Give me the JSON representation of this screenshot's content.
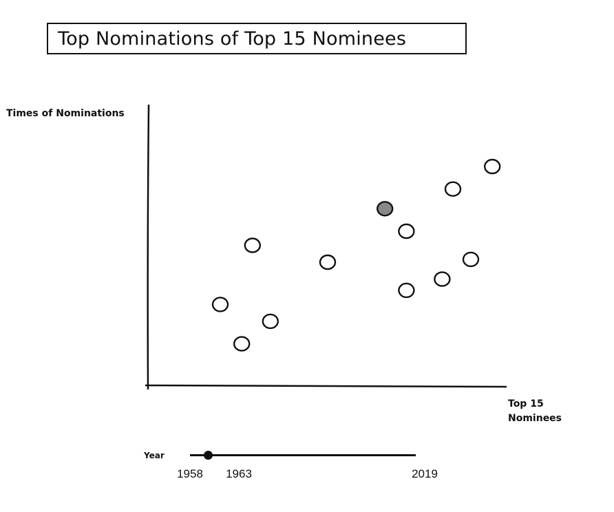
{
  "chart_data": {
    "type": "scatter",
    "title": "Top Nominations of Top 15 Nominees",
    "xlabel": "Top 15 Nominees",
    "ylabel": "Times of Nominations",
    "xlim": [
      0,
      1
    ],
    "ylim": [
      0,
      1
    ],
    "points": [
      {
        "x": 0.2,
        "y": 0.29,
        "highlighted": false
      },
      {
        "x": 0.26,
        "y": 0.15,
        "highlighted": false
      },
      {
        "x": 0.29,
        "y": 0.5,
        "highlighted": false
      },
      {
        "x": 0.34,
        "y": 0.23,
        "highlighted": false
      },
      {
        "x": 0.5,
        "y": 0.44,
        "highlighted": false
      },
      {
        "x": 0.66,
        "y": 0.63,
        "highlighted": true
      },
      {
        "x": 0.72,
        "y": 0.55,
        "highlighted": false
      },
      {
        "x": 0.72,
        "y": 0.34,
        "highlighted": false
      },
      {
        "x": 0.82,
        "y": 0.38,
        "highlighted": false
      },
      {
        "x": 0.85,
        "y": 0.7,
        "highlighted": false
      },
      {
        "x": 0.9,
        "y": 0.45,
        "highlighted": false
      },
      {
        "x": 0.96,
        "y": 0.78,
        "highlighted": false
      }
    ],
    "grid": false,
    "highlight_color": "#888888"
  },
  "year_slider": {
    "label": "Year",
    "min": 1958,
    "max": 2019,
    "value": 1963,
    "min_label": "1958",
    "value_label": "1963",
    "max_label": "2019"
  }
}
